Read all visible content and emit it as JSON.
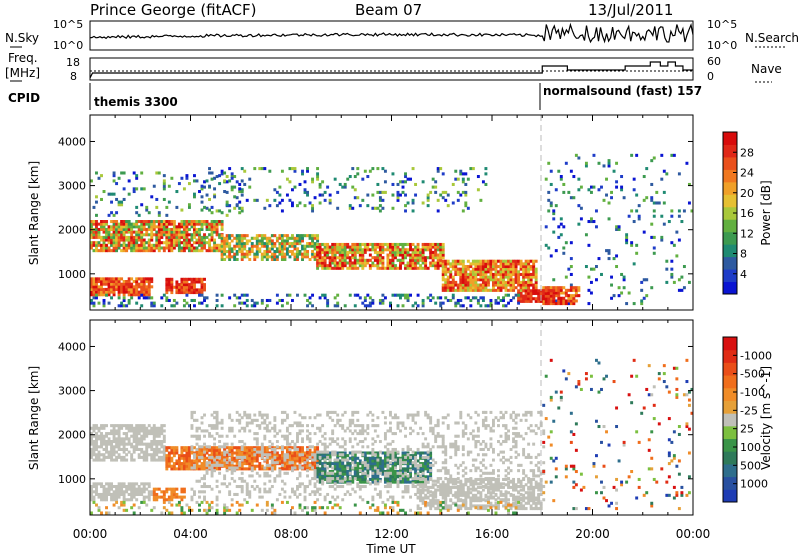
{
  "header": {
    "station": "Prince George (fitACF)",
    "beam": "Beam 07",
    "date": "13/Jul/2011"
  },
  "left_labels": {
    "nsky": "N.Sky",
    "freq_line1": "Freq.",
    "freq_line2": "[MHz]",
    "cpid": "CPID"
  },
  "right_labels": {
    "nsearch": "N.Search",
    "nave": "Nave"
  },
  "noise_panel": {
    "left_ticks": [
      "10^5",
      "10^0"
    ],
    "right_ticks": [
      "10^5",
      "10^0"
    ]
  },
  "freq_panel": {
    "left_ticks": [
      "18",
      "8"
    ],
    "right_ticks": [
      "60",
      "0"
    ]
  },
  "cpid_panel": {
    "labels": [
      "themis 3300",
      "normalsound (fast) 157"
    ]
  },
  "x_axis": {
    "label": "Time UT",
    "ticks": [
      "00:00",
      "04:00",
      "08:00",
      "12:00",
      "16:00",
      "20:00",
      "00:00"
    ]
  },
  "chart_data": [
    {
      "type": "heatmap",
      "panel": "power",
      "xlabel": "Time UT",
      "ylabel": "Slant Range [km]",
      "x_ticks": [
        "00:00",
        "04:00",
        "08:00",
        "12:00",
        "16:00",
        "20:00",
        "00:00"
      ],
      "y_ticks": [
        1000,
        2000,
        3000,
        4000
      ],
      "ylim": [
        180,
        4600
      ],
      "colorbar": {
        "label": "Power [dB]",
        "ticks": [
          4,
          8,
          12,
          16,
          20,
          24,
          28
        ],
        "colors": [
          "#0a14d2",
          "#1e3cc8",
          "#2e5aa0",
          "#1f8a72",
          "#3c9a50",
          "#62b040",
          "#a9c83a",
          "#e6c032",
          "#f0a028",
          "#f07820",
          "#ea501c",
          "#e02818",
          "#d80c0c"
        ]
      }
    },
    {
      "type": "heatmap",
      "panel": "velocity",
      "xlabel": "Time UT",
      "ylabel": "Slant Range [km]",
      "x_ticks": [
        "00:00",
        "04:00",
        "08:00",
        "12:00",
        "16:00",
        "20:00",
        "00:00"
      ],
      "y_ticks": [
        1000,
        2000,
        3000,
        4000
      ],
      "ylim": [
        180,
        4600
      ],
      "colorbar": {
        "label": "Velocity [m s^-1]",
        "ticks": [
          "1000",
          "500",
          "100",
          "25",
          "-25",
          "-100",
          "-500",
          "-1000"
        ],
        "colors": [
          "#1e3cb4",
          "#2850a0",
          "#2e6e8c",
          "#2e7a5a",
          "#3a9448",
          "#7cc040",
          "#c0c0b8",
          "#e6a038",
          "#f08c28",
          "#f06e1c",
          "#ea4e18",
          "#e02c14",
          "#d81010"
        ]
      }
    }
  ]
}
